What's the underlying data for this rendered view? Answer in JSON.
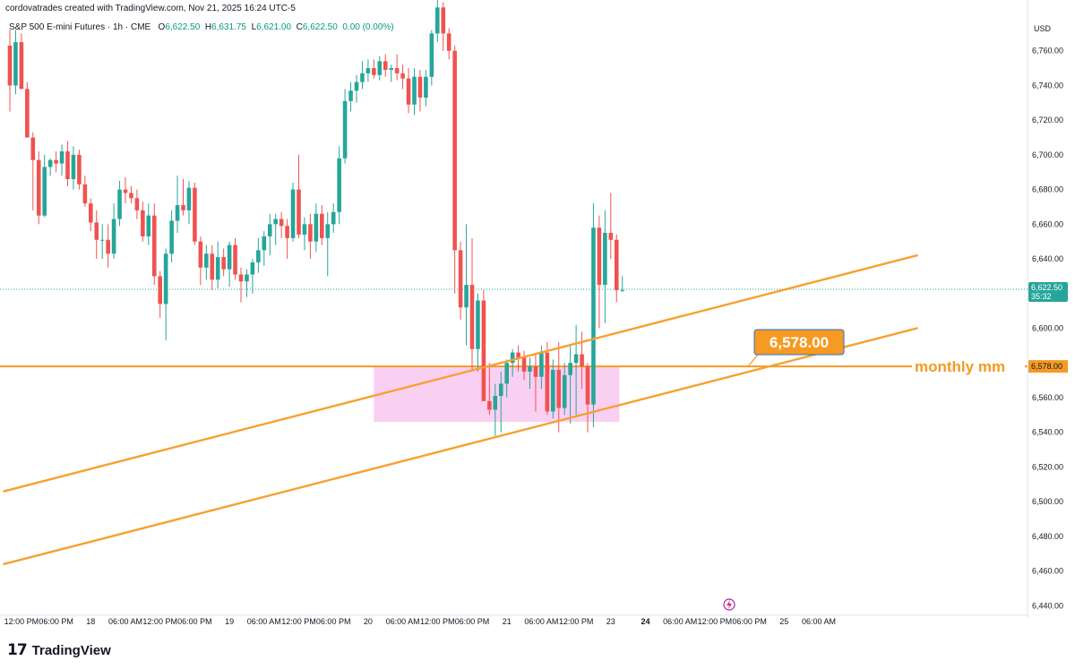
{
  "header": {
    "author_line": "cordovatrades created with TradingView.com, Nov 21, 2025 16:24 UTC-5"
  },
  "legend": {
    "symbol": "S&P 500 E-mini Futures · 1h · CME",
    "open_label": "O",
    "open": "6,622.50",
    "high_label": "H",
    "high": "6,631.75",
    "low_label": "L",
    "low": "6,621.00",
    "close_label": "C",
    "close": "6,622.50",
    "change": "0.00 (0.00%)"
  },
  "currency": "USD",
  "brand": {
    "mark": "17",
    "name": "TradingView"
  },
  "colors": {
    "up": "#26a69a",
    "down": "#ef5350",
    "orange": "#f7a030",
    "line_orange": "#f59a23",
    "zone": "#f9c8f0",
    "label_bg": "#f59a23"
  },
  "chart_data": {
    "type": "candlestick",
    "title": "S&P 500 E-mini Futures · 1h · CME",
    "xlabel": "",
    "ylabel": "",
    "ylim": [
      6435,
      6780
    ],
    "y_ticks": [
      {
        "v": 6760,
        "label": "6,760.00"
      },
      {
        "v": 6740,
        "label": "6,740.00"
      },
      {
        "v": 6720,
        "label": "6,720.00"
      },
      {
        "v": 6700,
        "label": "6,700.00"
      },
      {
        "v": 6680,
        "label": "6,680.00"
      },
      {
        "v": 6660,
        "label": "6,660.00"
      },
      {
        "v": 6640,
        "label": "6,640.00"
      },
      {
        "v": 6600,
        "label": "6,600.00"
      },
      {
        "v": 6560,
        "label": "6,560.00"
      },
      {
        "v": 6540,
        "label": "6,540.00"
      },
      {
        "v": 6520,
        "label": "6,520.00"
      },
      {
        "v": 6500,
        "label": "6,500.00"
      },
      {
        "v": 6480,
        "label": "6,480.00"
      },
      {
        "v": 6460,
        "label": "6,460.00"
      },
      {
        "v": 6440,
        "label": "6,440.00"
      }
    ],
    "x_ticks": [
      {
        "i": 2,
        "label": "12:00 PM"
      },
      {
        "i": 8,
        "label": "06:00 PM"
      },
      {
        "i": 14,
        "label": "18"
      },
      {
        "i": 20,
        "label": "06:00 AM"
      },
      {
        "i": 26,
        "label": "12:00 PM"
      },
      {
        "i": 32,
        "label": "06:00 PM"
      },
      {
        "i": 38,
        "label": "19"
      },
      {
        "i": 44,
        "label": "06:00 AM"
      },
      {
        "i": 50,
        "label": "12:00 PM"
      },
      {
        "i": 56,
        "label": "06:00 PM"
      },
      {
        "i": 62,
        "label": "20"
      },
      {
        "i": 68,
        "label": "06:00 AM"
      },
      {
        "i": 74,
        "label": "12:00 PM"
      },
      {
        "i": 80,
        "label": "06:00 PM"
      },
      {
        "i": 86,
        "label": "21"
      },
      {
        "i": 92,
        "label": "06:00 AM"
      },
      {
        "i": 98,
        "label": "12:00 PM"
      },
      {
        "i": 104,
        "label": "23"
      },
      {
        "i": 110,
        "label": "24"
      },
      {
        "i": 116,
        "label": "06:00 AM"
      },
      {
        "i": 122,
        "label": "12:00 PM"
      },
      {
        "i": 128,
        "label": "06:00 PM"
      },
      {
        "i": 134,
        "label": "25"
      },
      {
        "i": 140,
        "label": "06:00 AM"
      }
    ],
    "candles": [
      [
        6763,
        6772,
        6725,
        6740
      ],
      [
        6740,
        6772,
        6735,
        6765
      ],
      [
        6765,
        6770,
        6740,
        6738
      ],
      [
        6738,
        6742,
        6712,
        6710
      ],
      [
        6710,
        6713,
        6668,
        6697
      ],
      [
        6697,
        6702,
        6660,
        6665
      ],
      [
        6665,
        6700,
        6664,
        6693
      ],
      [
        6693,
        6698,
        6688,
        6697
      ],
      [
        6697,
        6702,
        6690,
        6695
      ],
      [
        6695,
        6706,
        6688,
        6702
      ],
      [
        6702,
        6708,
        6682,
        6686
      ],
      [
        6686,
        6705,
        6680,
        6700
      ],
      [
        6700,
        6703,
        6680,
        6683
      ],
      [
        6683,
        6688,
        6670,
        6672
      ],
      [
        6672,
        6675,
        6656,
        6661
      ],
      [
        6661,
        6668,
        6640,
        6651
      ],
      [
        6651,
        6660,
        6640,
        6651
      ],
      [
        6651,
        6660,
        6635,
        6643
      ],
      [
        6643,
        6672,
        6640,
        6663
      ],
      [
        6663,
        6685,
        6659,
        6680
      ],
      [
        6680,
        6687,
        6672,
        6678
      ],
      [
        6678,
        6682,
        6672,
        6675
      ],
      [
        6675,
        6680,
        6663,
        6668
      ],
      [
        6668,
        6673,
        6650,
        6653
      ],
      [
        6653,
        6672,
        6648,
        6665
      ],
      [
        6665,
        6672,
        6625,
        6630
      ],
      [
        6630,
        6633,
        6606,
        6614
      ],
      [
        6614,
        6646,
        6593,
        6643
      ],
      [
        6643,
        6668,
        6638,
        6662
      ],
      [
        6662,
        6688,
        6655,
        6671
      ],
      [
        6671,
        6686,
        6665,
        6668
      ],
      [
        6668,
        6685,
        6660,
        6681
      ],
      [
        6681,
        6684,
        6648,
        6650
      ],
      [
        6650,
        6653,
        6625,
        6635
      ],
      [
        6635,
        6648,
        6628,
        6643
      ],
      [
        6643,
        6648,
        6622,
        6628
      ],
      [
        6628,
        6650,
        6623,
        6641
      ],
      [
        6641,
        6646,
        6630,
        6634
      ],
      [
        6634,
        6650,
        6624,
        6648
      ],
      [
        6648,
        6652,
        6628,
        6631
      ],
      [
        6631,
        6635,
        6615,
        6627
      ],
      [
        6627,
        6634,
        6618,
        6631
      ],
      [
        6631,
        6640,
        6620,
        6638
      ],
      [
        6638,
        6652,
        6632,
        6645
      ],
      [
        6645,
        6656,
        6636,
        6653
      ],
      [
        6653,
        6666,
        6642,
        6660
      ],
      [
        6660,
        6666,
        6648,
        6663
      ],
      [
        6663,
        6667,
        6652,
        6659
      ],
      [
        6659,
        6663,
        6640,
        6652
      ],
      [
        6652,
        6684,
        6650,
        6680
      ],
      [
        6680,
        6700,
        6652,
        6654
      ],
      [
        6654,
        6664,
        6645,
        6660
      ],
      [
        6660,
        6666,
        6640,
        6650
      ],
      [
        6650,
        6672,
        6644,
        6666
      ],
      [
        6666,
        6671,
        6648,
        6652
      ],
      [
        6652,
        6667,
        6630,
        6660
      ],
      [
        6660,
        6672,
        6655,
        6667
      ],
      [
        6667,
        6705,
        6660,
        6698
      ],
      [
        6698,
        6738,
        6695,
        6731
      ],
      [
        6731,
        6742,
        6725,
        6737
      ],
      [
        6737,
        6746,
        6730,
        6742
      ],
      [
        6742,
        6754,
        6738,
        6747
      ],
      [
        6747,
        6755,
        6742,
        6750
      ],
      [
        6750,
        6755,
        6744,
        6746
      ],
      [
        6746,
        6757,
        6743,
        6754
      ],
      [
        6754,
        6758,
        6745,
        6749
      ],
      [
        6749,
        6752,
        6742,
        6750
      ],
      [
        6750,
        6758,
        6743,
        6747
      ],
      [
        6747,
        6752,
        6738,
        6744
      ],
      [
        6744,
        6750,
        6724,
        6729
      ],
      [
        6729,
        6750,
        6723,
        6745
      ],
      [
        6745,
        6749,
        6725,
        6733
      ],
      [
        6733,
        6749,
        6728,
        6745
      ],
      [
        6745,
        6772,
        6740,
        6770
      ],
      [
        6770,
        6790,
        6765,
        6785
      ],
      [
        6785,
        6788,
        6760,
        6770
      ],
      [
        6770,
        6773,
        6755,
        6760
      ],
      [
        6760,
        6763,
        6620,
        6645
      ],
      [
        6645,
        6650,
        6605,
        6612
      ],
      [
        6612,
        6660,
        6590,
        6625
      ],
      [
        6625,
        6652,
        6575,
        6588
      ],
      [
        6588,
        6620,
        6575,
        6616
      ],
      [
        6616,
        6622,
        6560,
        6558
      ],
      [
        6558,
        6580,
        6550,
        6553
      ],
      [
        6553,
        6568,
        6538,
        6561
      ],
      [
        6561,
        6575,
        6540,
        6568
      ],
      [
        6568,
        6582,
        6560,
        6580
      ],
      [
        6580,
        6588,
        6572,
        6586
      ],
      [
        6586,
        6590,
        6575,
        6583
      ],
      [
        6583,
        6587,
        6570,
        6575
      ],
      [
        6575,
        6583,
        6565,
        6578
      ],
      [
        6578,
        6585,
        6552,
        6572
      ],
      [
        6572,
        6590,
        6565,
        6586
      ],
      [
        6586,
        6592,
        6550,
        6552
      ],
      [
        6552,
        6582,
        6548,
        6576
      ],
      [
        6576,
        6592,
        6540,
        6554
      ],
      [
        6554,
        6580,
        6550,
        6573
      ],
      [
        6573,
        6590,
        6545,
        6580
      ],
      [
        6580,
        6602,
        6550,
        6585
      ],
      [
        6585,
        6598,
        6565,
        6578
      ],
      [
        6578,
        6580,
        6540,
        6556
      ],
      [
        6556,
        6672,
        6543,
        6658
      ],
      [
        6658,
        6665,
        6600,
        6625
      ],
      [
        6625,
        6668,
        6603,
        6655
      ],
      [
        6655,
        6678,
        6640,
        6651
      ],
      [
        6651,
        6654,
        6615,
        6622
      ],
      [
        6622,
        6630,
        6621,
        6622
      ]
    ],
    "horizontal_line": {
      "v": 6578,
      "label": "6,578.00",
      "name": "monthly mm"
    },
    "current_price": {
      "v": 6622.5,
      "label": "6,622.50",
      "countdown": "35:32"
    },
    "trendlines": [
      {
        "from": {
          "i": -1,
          "v": 6506
        },
        "to": {
          "i": 157,
          "v": 6642
        }
      },
      {
        "from": {
          "i": -1,
          "v": 6464
        },
        "to": {
          "i": 157,
          "v": 6600
        }
      }
    ],
    "zone": {
      "from_i": 63,
      "to_i": 105.5,
      "v_high": 6578,
      "v_low": 6546
    },
    "callout": {
      "label": "6,578.00"
    },
    "annotation_text": "monthly mm"
  }
}
